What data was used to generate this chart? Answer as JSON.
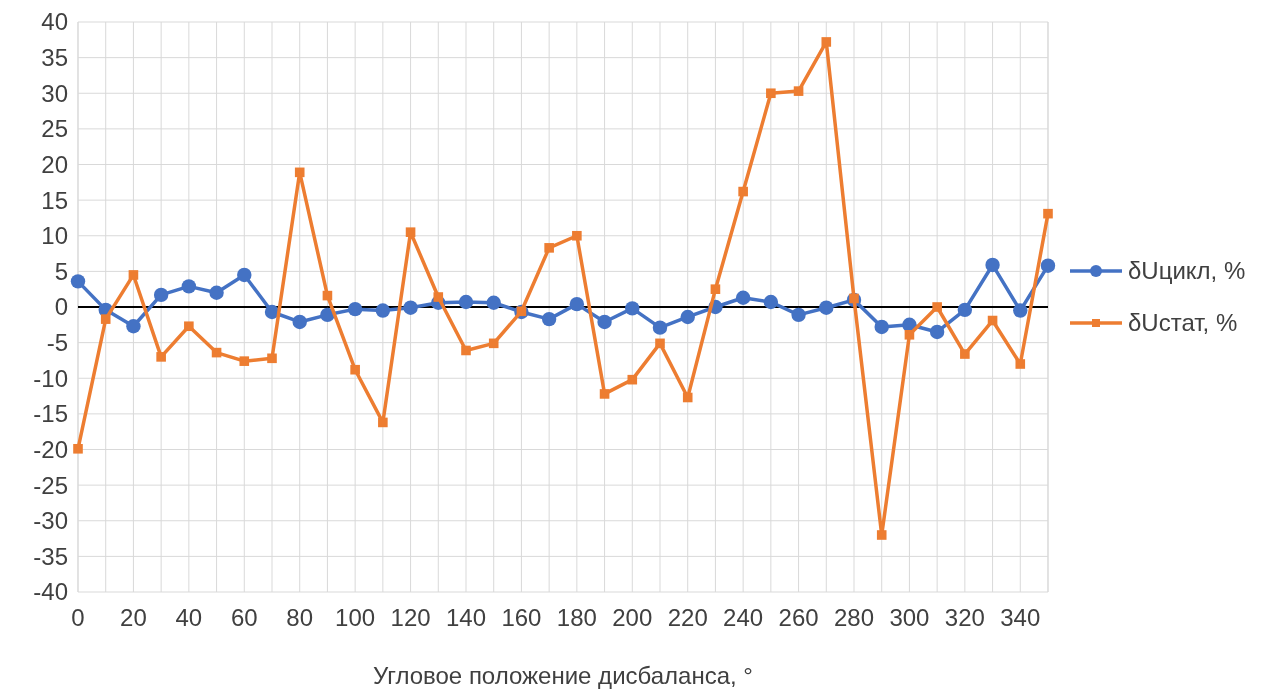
{
  "chart_data": {
    "type": "line",
    "xlabel": "Угловое положение дисбаланса, °",
    "categories": [
      "0",
      null,
      "20",
      null,
      "40",
      null,
      "60",
      null,
      "80",
      null,
      "100",
      null,
      "120",
      null,
      "140",
      null,
      "160",
      null,
      "180",
      null,
      "200",
      null,
      "220",
      null,
      "240",
      null,
      "260",
      null,
      "280",
      null,
      "300",
      null,
      "320",
      null,
      "340",
      null
    ],
    "series": [
      {
        "name": "δUцикл, %",
        "color": "#4472c4",
        "marker": "circle",
        "values": [
          3.6,
          -0.4,
          -2.7,
          1.7,
          2.9,
          2.0,
          4.5,
          -0.7,
          -2.1,
          -1.1,
          -0.3,
          -0.5,
          -0.1,
          0.6,
          0.7,
          0.6,
          -0.7,
          -1.7,
          0.4,
          -2.1,
          -0.2,
          -2.9,
          -1.4,
          0.0,
          1.3,
          0.7,
          -1.1,
          -0.1,
          1.0,
          -2.8,
          -2.5,
          -3.5,
          -0.4,
          5.9,
          -0.5,
          5.8
        ]
      },
      {
        "name": "δUстат, %",
        "color": "#ed7d31",
        "marker": "square",
        "values": [
          -19.9,
          -1.7,
          4.5,
          -7.0,
          -2.7,
          -6.4,
          -7.6,
          -7.2,
          18.9,
          1.6,
          -8.8,
          -16.2,
          10.5,
          1.4,
          -6.1,
          -5.1,
          -0.6,
          8.3,
          10.0,
          -12.2,
          -10.2,
          -5.1,
          -12.7,
          2.5,
          16.2,
          30.0,
          30.3,
          37.2,
          1.2,
          -32.0,
          -3.9,
          0.0,
          -6.6,
          -1.9,
          -8.0,
          13.1
        ]
      }
    ],
    "ylim": [
      -40,
      40
    ],
    "yticks": [
      -40,
      -35,
      -30,
      -25,
      -20,
      -15,
      -10,
      -5,
      0,
      5,
      10,
      15,
      20,
      25,
      30,
      35,
      40
    ],
    "grid": true,
    "legend": "right",
    "line_style": "solid"
  }
}
